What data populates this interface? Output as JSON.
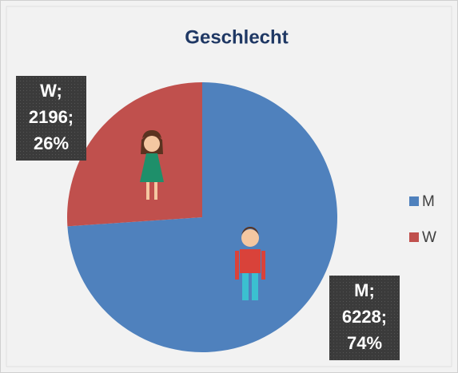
{
  "chart_data": {
    "type": "pie",
    "title": "Geschlecht",
    "categories": [
      "M",
      "W"
    ],
    "values": [
      6228,
      2196
    ],
    "colors": [
      "#4f81bd",
      "#c0504d"
    ],
    "value_labels": [
      [
        "M;",
        "6228;",
        "74%"
      ],
      [
        "W;",
        "2196;",
        "26%"
      ]
    ],
    "legend": "right"
  }
}
